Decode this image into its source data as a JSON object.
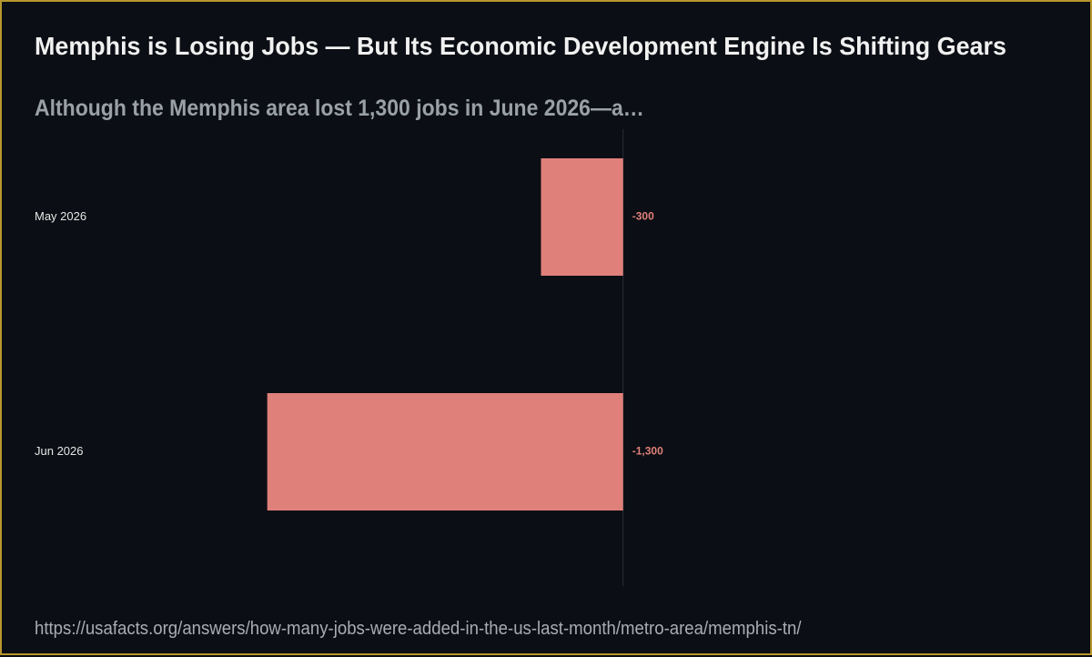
{
  "title": "Memphis is Losing Jobs — But Its Economic Development Engine Is Shifting Gears",
  "subtitle": "Although the Memphis area lost 1,300 jobs in June 2026—a…",
  "source": "https://usafacts.org/answers/how-many-jobs-were-added-in-the-us-last-month/metro-area/memphis-tn/",
  "colors": {
    "background": "#0b0e14",
    "frame": "#b8962e",
    "bar": "#e0807a",
    "bar_label": "#e0807a",
    "axis_line": "#2a2f38",
    "category_label": "#e6e6e6"
  },
  "chart_data": {
    "type": "bar",
    "orientation": "horizontal",
    "categories": [
      "May 2026",
      "Jun 2026"
    ],
    "values": [
      -300,
      -1300
    ],
    "value_labels": [
      "-300",
      "-1,300"
    ],
    "xlim": [
      -2150,
      1600
    ],
    "grid": false,
    "legend": "none"
  }
}
